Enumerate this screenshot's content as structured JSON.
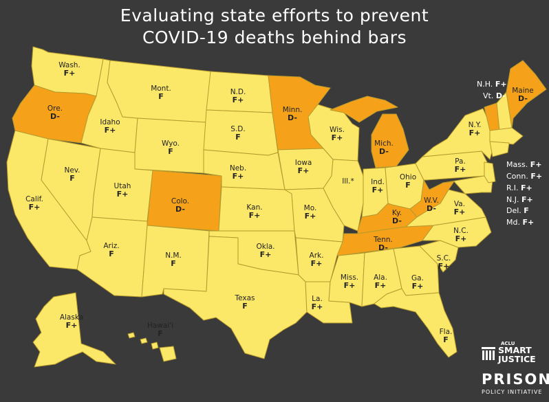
{
  "title": {
    "line1": "Evaluating state efforts to prevent",
    "line2": "COVID-19 deaths behind bars"
  },
  "colors": {
    "background": "#3a3a3a",
    "grade_f": "#fce868",
    "grade_d": "#f5a21a",
    "border": "#b59a2e",
    "text": "#222222"
  },
  "states": [
    {
      "abbr": "Wash.",
      "grade": "F+"
    },
    {
      "abbr": "Ore.",
      "grade": "D-"
    },
    {
      "abbr": "Calif.",
      "grade": "F+"
    },
    {
      "abbr": "Idaho",
      "grade": "F+"
    },
    {
      "abbr": "Nev.",
      "grade": "F"
    },
    {
      "abbr": "Mont.",
      "grade": "F"
    },
    {
      "abbr": "Wyo.",
      "grade": "F"
    },
    {
      "abbr": "Utah",
      "grade": "F+"
    },
    {
      "abbr": "Colo.",
      "grade": "D-"
    },
    {
      "abbr": "Ariz.",
      "grade": "F"
    },
    {
      "abbr": "N.M.",
      "grade": "F"
    },
    {
      "abbr": "N.D.",
      "grade": "F+"
    },
    {
      "abbr": "S.D.",
      "grade": "F"
    },
    {
      "abbr": "Neb.",
      "grade": "F+"
    },
    {
      "abbr": "Kan.",
      "grade": "F+"
    },
    {
      "abbr": "Okla.",
      "grade": "F+"
    },
    {
      "abbr": "Texas",
      "grade": "F"
    },
    {
      "abbr": "Minn.",
      "grade": "D-"
    },
    {
      "abbr": "Iowa",
      "grade": "F+"
    },
    {
      "abbr": "Mo.",
      "grade": "F+"
    },
    {
      "abbr": "Ark.",
      "grade": "F+"
    },
    {
      "abbr": "La.",
      "grade": "F+"
    },
    {
      "abbr": "Wis.",
      "grade": "F+"
    },
    {
      "abbr": "Ill.*",
      "grade": ""
    },
    {
      "abbr": "Mich.",
      "grade": "D-"
    },
    {
      "abbr": "Ind.",
      "grade": "F+"
    },
    {
      "abbr": "Ohio",
      "grade": "F"
    },
    {
      "abbr": "Ky.",
      "grade": "D-"
    },
    {
      "abbr": "Tenn.",
      "grade": "D-"
    },
    {
      "abbr": "Miss.",
      "grade": "F+"
    },
    {
      "abbr": "Ala.",
      "grade": "F+"
    },
    {
      "abbr": "Ga.",
      "grade": "F+"
    },
    {
      "abbr": "Fla.",
      "grade": "F"
    },
    {
      "abbr": "S.C.",
      "grade": "F+"
    },
    {
      "abbr": "N.C.",
      "grade": "F+"
    },
    {
      "abbr": "Va.",
      "grade": "F+"
    },
    {
      "abbr": "W.V.",
      "grade": "D-"
    },
    {
      "abbr": "Pa.",
      "grade": "F+"
    },
    {
      "abbr": "N.Y.",
      "grade": "F+"
    },
    {
      "abbr": "Maine",
      "grade": "D-"
    },
    {
      "abbr": "Alaska",
      "grade": "F+"
    },
    {
      "abbr": "Hawai'i",
      "grade": "F"
    }
  ],
  "side_states": [
    {
      "abbr": "N.H.",
      "grade": "F+"
    },
    {
      "abbr": "Vt.",
      "grade": "D-"
    },
    {
      "abbr": "Mass.",
      "grade": "F+"
    },
    {
      "abbr": "Conn.",
      "grade": "F+"
    },
    {
      "abbr": "R.I.",
      "grade": "F+"
    },
    {
      "abbr": "N.J.",
      "grade": "F+"
    },
    {
      "abbr": "Del.",
      "grade": "F"
    },
    {
      "abbr": "Md.",
      "grade": "F+"
    }
  ],
  "logos": {
    "aclu": "ACLU",
    "smart": "SMART",
    "justice": "JUSTICE",
    "prison": "PRISON",
    "ppi": "POLICY INITIATIVE"
  }
}
